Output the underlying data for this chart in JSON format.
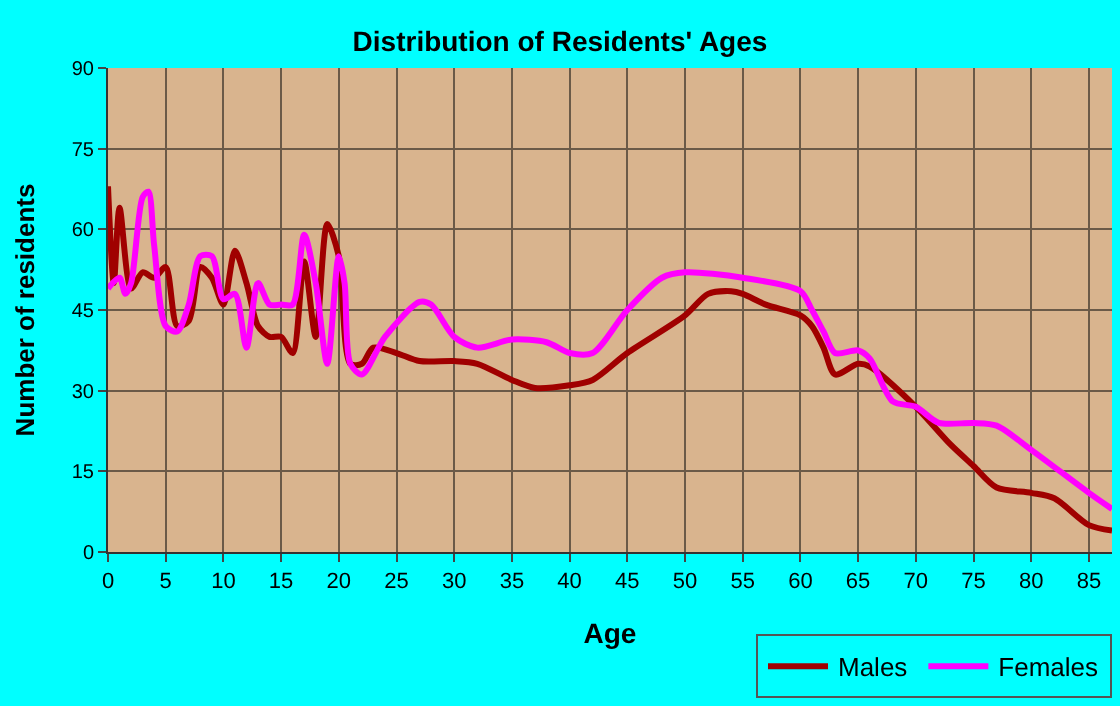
{
  "chart_data": {
    "type": "line",
    "title": "Distribution of Residents' Ages",
    "xlabel": "Age",
    "ylabel": "Number of residents",
    "xlim": [
      0,
      87
    ],
    "xticks": [
      0,
      5,
      10,
      15,
      20,
      25,
      30,
      35,
      40,
      45,
      50,
      55,
      60,
      65,
      70,
      75,
      80,
      85
    ],
    "ylim": [
      0,
      90
    ],
    "yticks": [
      0,
      15,
      30,
      45,
      60,
      75,
      90
    ],
    "grid": true,
    "legend": "bottom right",
    "series": [
      {
        "name": "Males",
        "color": "#a00000",
        "x": [
          0,
          0.5,
          1,
          2,
          3,
          4,
          5,
          6,
          7,
          8,
          9,
          10,
          11,
          12,
          13,
          14,
          15,
          16,
          17,
          18,
          19,
          20,
          21,
          22,
          23,
          25,
          27,
          30,
          32,
          35,
          37,
          40,
          42,
          45,
          50,
          52,
          54,
          55,
          57,
          60,
          61,
          62,
          63,
          65,
          66,
          70,
          73,
          75,
          77,
          80,
          82,
          85,
          87
        ],
        "values": [
          68,
          50,
          64,
          49,
          52,
          51,
          53,
          42,
          43,
          53,
          51,
          46,
          56,
          50,
          42,
          40,
          40,
          37,
          54,
          40,
          61,
          55,
          35,
          35,
          38,
          37,
          35.5,
          35.5,
          35,
          32,
          30.5,
          31,
          32,
          37,
          44,
          48,
          48.5,
          48,
          46,
          44,
          42,
          38,
          33,
          35,
          34.5,
          27,
          20,
          16,
          12,
          11,
          10,
          5,
          4
        ]
      },
      {
        "name": "Females",
        "color": "#ff00ff",
        "x": [
          0,
          1,
          1.5,
          2,
          3,
          3.5,
          4,
          5,
          6,
          7,
          8,
          9,
          10,
          11,
          12,
          13,
          14,
          15,
          16,
          17,
          18,
          19,
          20,
          20.5,
          21,
          22,
          24,
          27,
          28,
          30,
          32,
          35,
          38,
          40,
          42,
          45,
          48,
          50,
          55,
          60,
          61,
          62,
          63,
          65,
          66,
          68,
          70,
          72,
          75,
          77,
          80,
          85,
          87
        ],
        "values": [
          49,
          51,
          48,
          50,
          66,
          67,
          57,
          42,
          41,
          46,
          55,
          55,
          47,
          48,
          38,
          50,
          46,
          46,
          46,
          59,
          50,
          35,
          55,
          50,
          35,
          33,
          40,
          46.5,
          46,
          40,
          38,
          39.5,
          39,
          37,
          37,
          45,
          51,
          52,
          51,
          48.5,
          45,
          41,
          37,
          37.5,
          36,
          28,
          27,
          24,
          24,
          23.5,
          19,
          11,
          8
        ]
      }
    ]
  }
}
